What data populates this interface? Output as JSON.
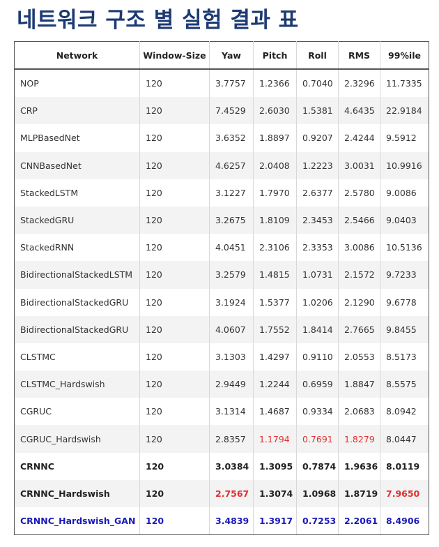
{
  "title": "네트워크 구조 별 실험 결과 표",
  "table": {
    "headers": [
      "Network",
      "Window-Size",
      "Yaw",
      "Pitch",
      "Roll",
      "RMS",
      "99%ile"
    ],
    "rows": [
      {
        "network": "NOP",
        "window": "120",
        "yaw": "3.7757",
        "pitch": "1.2366",
        "roll": "0.7040",
        "rms": "2.3296",
        "p99": "11.7335"
      },
      {
        "network": "CRP",
        "window": "120",
        "yaw": "7.4529",
        "pitch": "2.6030",
        "roll": "1.5381",
        "rms": "4.6435",
        "p99": "22.9184"
      },
      {
        "network": "MLPBasedNet",
        "window": "120",
        "yaw": "3.6352",
        "pitch": "1.8897",
        "roll": "0.9207",
        "rms": "2.4244",
        "p99": "9.5912"
      },
      {
        "network": "CNNBasedNet",
        "window": "120",
        "yaw": "4.6257",
        "pitch": "2.0408",
        "roll": "1.2223",
        "rms": "3.0031",
        "p99": "10.9916"
      },
      {
        "network": "StackedLSTM",
        "window": "120",
        "yaw": "3.1227",
        "pitch": "1.7970",
        "roll": "2.6377",
        "rms": "2.5780",
        "p99": "9.0086"
      },
      {
        "network": "StackedGRU",
        "window": "120",
        "yaw": "3.2675",
        "pitch": "1.8109",
        "roll": "2.3453",
        "rms": "2.5466",
        "p99": "9.0403"
      },
      {
        "network": "StackedRNN",
        "window": "120",
        "yaw": "4.0451",
        "pitch": "2.3106",
        "roll": "2.3353",
        "rms": "3.0086",
        "p99": "10.5136"
      },
      {
        "network": "BidirectionalStackedLSTM",
        "window": "120",
        "yaw": "3.2579",
        "pitch": "1.4815",
        "roll": "1.0731",
        "rms": "2.1572",
        "p99": "9.7233"
      },
      {
        "network": "BidirectionalStackedGRU",
        "window": "120",
        "yaw": "3.1924",
        "pitch": "1.5377",
        "roll": "1.0206",
        "rms": "2.1290",
        "p99": "9.6778"
      },
      {
        "network": "BidirectionalStackedGRU",
        "window": "120",
        "yaw": "4.0607",
        "pitch": "1.7552",
        "roll": "1.8414",
        "rms": "2.7665",
        "p99": "9.8455"
      },
      {
        "network": "CLSTMC",
        "window": "120",
        "yaw": "3.1303",
        "pitch": "1.4297",
        "roll": "0.9110",
        "rms": "2.0553",
        "p99": "8.5173"
      },
      {
        "network": "CLSTMC_Hardswish",
        "window": "120",
        "yaw": "2.9449",
        "pitch": "1.2244",
        "roll": "0.6959",
        "rms": "1.8847",
        "p99": "8.5575"
      },
      {
        "network": "CGRUC",
        "window": "120",
        "yaw": "3.1314",
        "pitch": "1.4687",
        "roll": "0.9334",
        "rms": "2.0683",
        "p99": "8.0942"
      },
      {
        "network": "CGRUC_Hardswish",
        "window": "120",
        "yaw": "2.8357",
        "pitch": "1.1794",
        "roll": "0.7691",
        "rms": "1.8279",
        "p99": "8.0447"
      },
      {
        "network": "CRNNC",
        "window": "120",
        "yaw": "3.0384",
        "pitch": "1.3095",
        "roll": "0.7874",
        "rms": "1.9636",
        "p99": "8.0119"
      },
      {
        "network": "CRNNC_Hardswish",
        "window": "120",
        "yaw": "2.7567",
        "pitch": "1.3074",
        "roll": "1.0968",
        "rms": "1.8719",
        "p99": "7.9650"
      },
      {
        "network": "CRNNC_Hardswish_GAN",
        "window": "120",
        "yaw": "3.4839",
        "pitch": "1.3917",
        "roll": "0.7253",
        "rms": "2.2061",
        "p99": "8.4906"
      }
    ]
  },
  "colors": {
    "title": "#1c3a73",
    "highlight_red": "#e03030",
    "highlight_blue": "#1a1ab8"
  }
}
